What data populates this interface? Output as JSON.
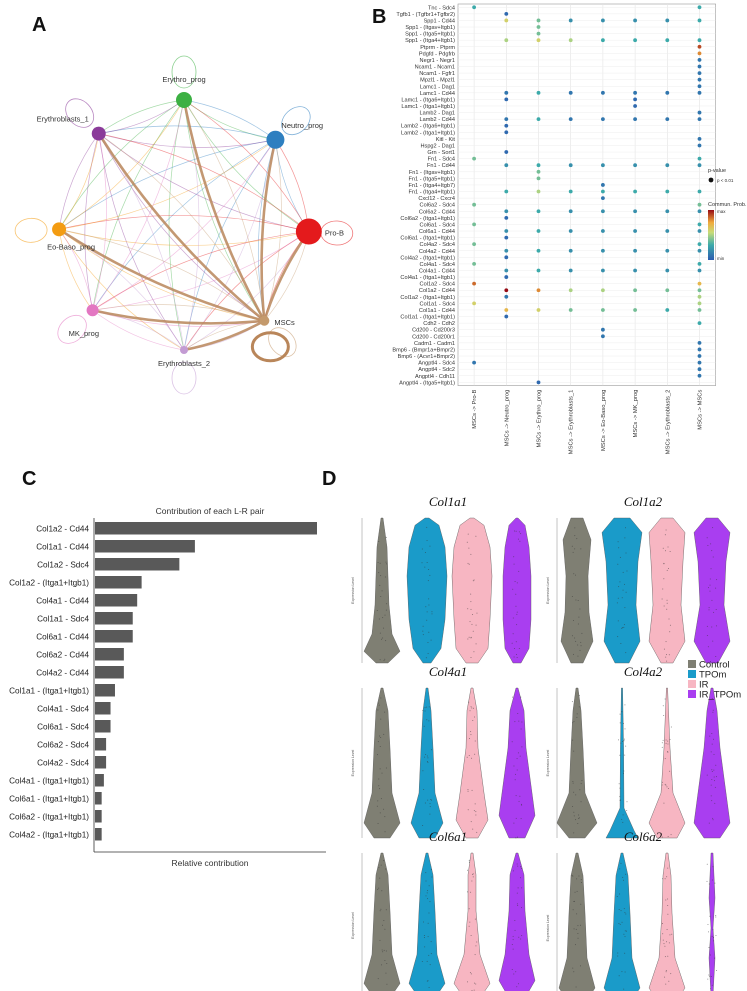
{
  "panels": {
    "a": "A",
    "b": "B",
    "c": "C",
    "d": "D"
  },
  "chart_data": [
    {
      "type": "network",
      "panel": "A",
      "nodes": [
        {
          "name": "Erythro_prog",
          "color": "#3cb043"
        },
        {
          "name": "Neutro_prog",
          "color": "#2e7fc0"
        },
        {
          "name": "Erythroblasts_1",
          "color": "#8b3a9a"
        },
        {
          "name": "Pro-B",
          "color": "#e41a1c"
        },
        {
          "name": "Eo-Baso_prog",
          "color": "#f39c12"
        },
        {
          "name": "MK_prog",
          "color": "#e377c2"
        },
        {
          "name": "Erythroblasts_2",
          "color": "#c39bd3"
        },
        {
          "name": "MSCs",
          "color": "#c49a6c"
        }
      ],
      "strong_edges_from": "MSCs",
      "strong_edges_to": [
        "Erythro_prog",
        "Neutro_prog",
        "Erythroblasts_1",
        "Pro-B",
        "Eo-Baso_prog",
        "MK_prog",
        "Erythroblasts_2"
      ]
    },
    {
      "type": "dotplot",
      "panel": "B",
      "pairs": [
        "Tnc - Sdc4",
        "Tgfb1 - (Tgfbr1+Tgfbr2)",
        "Spp1 - Cd44",
        "Spp1 - (Itgav+Itgb1)",
        "Spp1 - (Itga5+Itgb1)",
        "Spp1 - (Itga4+Itgb1)",
        "Ptprm - Ptprm",
        "Pdgfd - Pdgfrb",
        "Negr1 - Negr1",
        "Ncam1 - Ncam1",
        "Ncam1 - Fgfr1",
        "Mpzl1 - Mpzl1",
        "Lamc1 - Dag1",
        "Lamc1 - Cd44",
        "Lamc1 - (Itga6+Itgb1)",
        "Lamc1 - (Itga1+Itgb1)",
        "Lamb2 - Dag1",
        "Lamb2 - Cd44",
        "Lamb2 - (Itga6+Itgb1)",
        "Lamb2 - (Itga1+Itgb1)",
        "Kitl - Kit",
        "Hspg2 - Dag1",
        "Grn - Sort1",
        "Fn1 - Sdc4",
        "Fn1 - Cd44",
        "Fn1 - (Itgav+Itgb1)",
        "Fn1 - (Itga5+Itgb1)",
        "Fn1 - (Itga4+Itgb7)",
        "Fn1 - (Itga4+Itgb1)",
        "Cxcl12 - Cxcr4",
        "Col6a2 - Sdc4",
        "Col6a2 - Cd44",
        "Col6a2 - (Itga1+Itgb1)",
        "Col6a1 - Sdc4",
        "Col6a1 - Cd44",
        "Col6a1 - (Itga1+Itgb1)",
        "Col4a2 - Sdc4",
        "Col4a2 - Cd44",
        "Col4a2 - (Itga1+Itgb1)",
        "Col4a1 - Sdc4",
        "Col4a1 - Cd44",
        "Col4a1 - (Itga1+Itgb1)",
        "Col1a2 - Sdc4",
        "Col1a2 - Cd44",
        "Col1a2 - (Itga1+Itgb1)",
        "Col1a1 - Sdc4",
        "Col1a1 - Cd44",
        "Col1a1 - (Itga1+Itgb1)",
        "Cdh2 - Cdh2",
        "Cd200 - Cd200r3",
        "Cd200 - Cd200r1",
        "Cadm1 - Cadm1",
        "Bmp6 - (Bmpr1a+Bmpr2)",
        "Bmp6 - (Acvr1+Bmpr2)",
        "Angptl4 - Sdc4",
        "Angptl4 - Sdc2",
        "Angptl4 - Cdh11",
        "Angptl4 - (Itga5+Itgb1)"
      ],
      "targets": [
        "MSCs -> Pro-B",
        "MSCs -> Neutro_prog",
        "MSCs -> Erythro_prog",
        "MSCs -> Erythroblasts_1",
        "MSCs -> Eo-Baso_prog",
        "MSCs -> MK_prog",
        "MSCs -> Erythroblasts_2",
        "MSCs -> MSCs"
      ],
      "points": [
        [
          0,
          0,
          0.3
        ],
        [
          0,
          7,
          0.3
        ],
        [
          1,
          1,
          0.05
        ],
        [
          2,
          1,
          0.6
        ],
        [
          2,
          2,
          0.4
        ],
        [
          2,
          3,
          0.2
        ],
        [
          2,
          4,
          0.2
        ],
        [
          2,
          5,
          0.2
        ],
        [
          2,
          6,
          0.2
        ],
        [
          2,
          7,
          0.3
        ],
        [
          3,
          2,
          0.4
        ],
        [
          4,
          2,
          0.4
        ],
        [
          5,
          1,
          0.5
        ],
        [
          5,
          2,
          0.6
        ],
        [
          5,
          3,
          0.5
        ],
        [
          5,
          4,
          0.3
        ],
        [
          5,
          5,
          0.3
        ],
        [
          5,
          6,
          0.3
        ],
        [
          5,
          7,
          0.3
        ],
        [
          6,
          7,
          0.9
        ],
        [
          7,
          7,
          0.8
        ],
        [
          8,
          7,
          0.1
        ],
        [
          9,
          7,
          0.1
        ],
        [
          10,
          7,
          0.1
        ],
        [
          11,
          7,
          0.1
        ],
        [
          12,
          7,
          0.1
        ],
        [
          13,
          1,
          0.1
        ],
        [
          13,
          2,
          0.3
        ],
        [
          13,
          3,
          0.1
        ],
        [
          13,
          4,
          0.1
        ],
        [
          13,
          5,
          0.1
        ],
        [
          13,
          6,
          0.1
        ],
        [
          13,
          7,
          0.1
        ],
        [
          14,
          1,
          0.05
        ],
        [
          14,
          5,
          0.05
        ],
        [
          15,
          5,
          0.05
        ],
        [
          16,
          7,
          0.1
        ],
        [
          17,
          1,
          0.1
        ],
        [
          17,
          2,
          0.3
        ],
        [
          17,
          3,
          0.1
        ],
        [
          17,
          4,
          0.1
        ],
        [
          17,
          5,
          0.1
        ],
        [
          17,
          6,
          0.1
        ],
        [
          17,
          7,
          0.1
        ],
        [
          18,
          1,
          0.05
        ],
        [
          19,
          1,
          0.05
        ],
        [
          20,
          7,
          0.1
        ],
        [
          21,
          7,
          0.1
        ],
        [
          22,
          1,
          0.05
        ],
        [
          23,
          0,
          0.4
        ],
        [
          23,
          7,
          0.3
        ],
        [
          24,
          1,
          0.2
        ],
        [
          24,
          2,
          0.3
        ],
        [
          24,
          3,
          0.2
        ],
        [
          24,
          4,
          0.2
        ],
        [
          24,
          5,
          0.2
        ],
        [
          24,
          6,
          0.2
        ],
        [
          24,
          7,
          0.2
        ],
        [
          25,
          2,
          0.4
        ],
        [
          26,
          2,
          0.4
        ],
        [
          27,
          4,
          0.1
        ],
        [
          28,
          1,
          0.3
        ],
        [
          28,
          2,
          0.5
        ],
        [
          28,
          3,
          0.3
        ],
        [
          28,
          4,
          0.3
        ],
        [
          28,
          5,
          0.3
        ],
        [
          28,
          6,
          0.3
        ],
        [
          28,
          7,
          0.3
        ],
        [
          29,
          4,
          0.1
        ],
        [
          30,
          0,
          0.4
        ],
        [
          30,
          7,
          0.4
        ],
        [
          31,
          1,
          0.2
        ],
        [
          31,
          2,
          0.3
        ],
        [
          31,
          3,
          0.2
        ],
        [
          31,
          4,
          0.2
        ],
        [
          31,
          5,
          0.2
        ],
        [
          31,
          6,
          0.2
        ],
        [
          31,
          7,
          0.2
        ],
        [
          32,
          1,
          0.05
        ],
        [
          33,
          0,
          0.4
        ],
        [
          33,
          7,
          0.3
        ],
        [
          34,
          1,
          0.2
        ],
        [
          34,
          2,
          0.3
        ],
        [
          34,
          3,
          0.2
        ],
        [
          34,
          4,
          0.2
        ],
        [
          34,
          5,
          0.2
        ],
        [
          34,
          6,
          0.2
        ],
        [
          34,
          7,
          0.2
        ],
        [
          35,
          1,
          0.05
        ],
        [
          36,
          0,
          0.4
        ],
        [
          36,
          7,
          0.3
        ],
        [
          37,
          1,
          0.2
        ],
        [
          37,
          2,
          0.3
        ],
        [
          37,
          3,
          0.2
        ],
        [
          37,
          4,
          0.2
        ],
        [
          37,
          5,
          0.2
        ],
        [
          37,
          6,
          0.2
        ],
        [
          37,
          7,
          0.2
        ],
        [
          38,
          1,
          0.05
        ],
        [
          39,
          0,
          0.4
        ],
        [
          39,
          7,
          0.3
        ],
        [
          40,
          1,
          0.2
        ],
        [
          40,
          2,
          0.3
        ],
        [
          40,
          3,
          0.2
        ],
        [
          40,
          4,
          0.2
        ],
        [
          40,
          5,
          0.2
        ],
        [
          40,
          6,
          0.2
        ],
        [
          40,
          7,
          0.2
        ],
        [
          41,
          1,
          0.05
        ],
        [
          42,
          0,
          0.85
        ],
        [
          42,
          7,
          0.7
        ],
        [
          43,
          1,
          1.0
        ],
        [
          43,
          2,
          0.8
        ],
        [
          43,
          3,
          0.5
        ],
        [
          43,
          4,
          0.5
        ],
        [
          43,
          5,
          0.4
        ],
        [
          43,
          6,
          0.4
        ],
        [
          43,
          7,
          0.4
        ],
        [
          44,
          1,
          0.1
        ],
        [
          44,
          7,
          0.5
        ],
        [
          45,
          0,
          0.6
        ],
        [
          45,
          7,
          0.5
        ],
        [
          46,
          1,
          0.7
        ],
        [
          46,
          2,
          0.6
        ],
        [
          46,
          3,
          0.4
        ],
        [
          46,
          4,
          0.4
        ],
        [
          46,
          5,
          0.4
        ],
        [
          46,
          6,
          0.3
        ],
        [
          46,
          7,
          0.4
        ],
        [
          47,
          1,
          0.05
        ],
        [
          48,
          7,
          0.3
        ],
        [
          49,
          4,
          0.1
        ],
        [
          50,
          4,
          0.1
        ],
        [
          51,
          7,
          0.1
        ],
        [
          52,
          7,
          0.1
        ],
        [
          53,
          7,
          0.1
        ],
        [
          54,
          0,
          0.1
        ],
        [
          54,
          7,
          0.1
        ],
        [
          55,
          7,
          0.1
        ],
        [
          56,
          7,
          0.1
        ],
        [
          57,
          2,
          0.05
        ]
      ],
      "legend_pvalue_title": "p-value",
      "legend_pvalue_label": "p < 0.01",
      "legend_prob_title": "Commun. Prob.",
      "legend_prob_max": "max",
      "legend_prob_min": "min"
    },
    {
      "type": "bar",
      "panel": "C",
      "orientation": "horizontal",
      "title": "Contribution of each L-R pair",
      "xlabel": "Relative contribution",
      "categories": [
        "Col1a2 - Cd44",
        "Col1a1 - Cd44",
        "Col1a2 - Sdc4",
        "Col1a2 - (Itga1+Itgb1)",
        "Col4a1 - Cd44",
        "Col1a1 - Sdc4",
        "Col6a1 - Cd44",
        "Col6a2 - Cd44",
        "Col4a2 - Cd44",
        "Col1a1 - (Itga1+Itgb1)",
        "Col4a1 - Sdc4",
        "Col6a1 - Sdc4",
        "Col6a2 - Sdc4",
        "Col4a2 - Sdc4",
        "Col4a1 - (Itga1+Itgb1)",
        "Col6a1 - (Itga1+Itgb1)",
        "Col6a2 - (Itga1+Itgb1)",
        "Col4a2 - (Itga1+Itgb1)"
      ],
      "values": [
        1.0,
        0.45,
        0.38,
        0.21,
        0.19,
        0.17,
        0.17,
        0.13,
        0.13,
        0.09,
        0.07,
        0.07,
        0.05,
        0.05,
        0.04,
        0.03,
        0.03,
        0.03
      ],
      "color": "#595959"
    },
    {
      "type": "violin",
      "panel": "D",
      "ylabel": "Expression Level",
      "groups": [
        "Control",
        "TPOm",
        "IR",
        "IR_TPOm"
      ],
      "colors": [
        "#7f7f73",
        "#1a9bc9",
        "#f7b6c2",
        "#a93ef0"
      ],
      "genes": [
        {
          "name": "Col1a1",
          "shape": "a"
        },
        {
          "name": "Col1a2",
          "shape": "b"
        },
        {
          "name": "Col4a1",
          "shape": "c"
        },
        {
          "name": "Col4a2",
          "shape": "d"
        },
        {
          "name": "Col6a1",
          "shape": "e"
        },
        {
          "name": "Col6a2",
          "shape": "f"
        }
      ]
    }
  ]
}
